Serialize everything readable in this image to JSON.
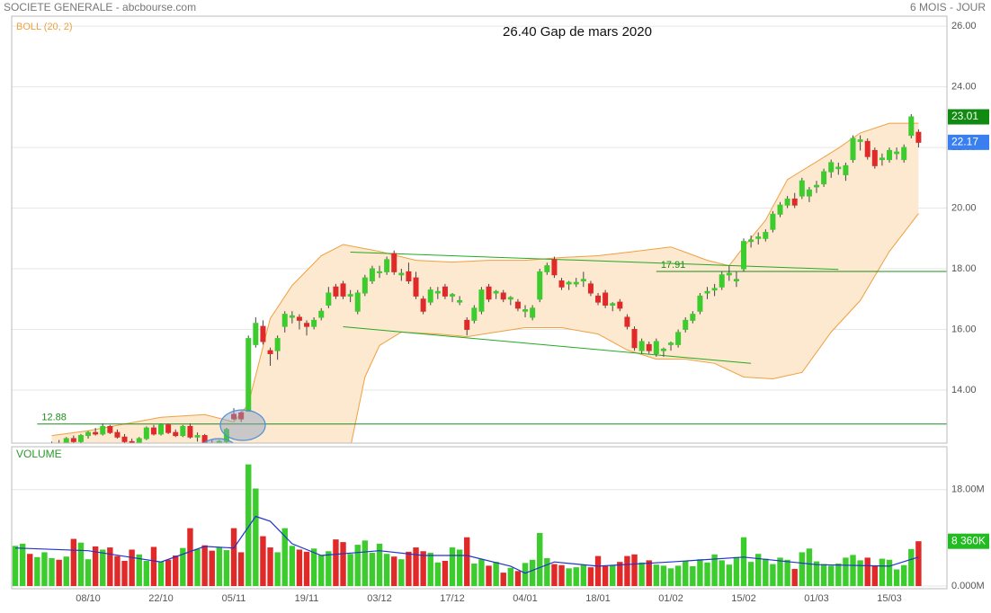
{
  "chart_data": {
    "type": "candlestick",
    "header": "SOCIETE GENERALE - abcbourse.com",
    "period": "6 MOIS - JOUR",
    "title": "26.40 Gap de mars 2020",
    "indicator_label": "BOLL (20, 2)",
    "volume_label": "VOLUME",
    "grid": true,
    "xlim": [
      -0.5,
      127.9
    ],
    "xticks": [
      {
        "value": 10,
        "label": "08/10"
      },
      {
        "value": 20,
        "label": "22/10"
      },
      {
        "value": 30,
        "label": "05/11"
      },
      {
        "value": 40,
        "label": "19/11"
      },
      {
        "value": 50,
        "label": "03/12"
      },
      {
        "value": 60,
        "label": "17/12"
      },
      {
        "value": 70,
        "label": "04/01"
      },
      {
        "value": 80,
        "label": "18/01"
      },
      {
        "value": 90,
        "label": "01/02"
      },
      {
        "value": 100,
        "label": "15/02"
      },
      {
        "value": 110,
        "label": "01/03"
      },
      {
        "value": 120,
        "label": "15/03"
      }
    ],
    "ylim": [
      12.25,
      26.33
    ],
    "yticks": [
      {
        "value": 14,
        "label": "14.00"
      },
      {
        "value": 16,
        "label": "16.00"
      },
      {
        "value": 18,
        "label": "18.00"
      },
      {
        "value": 20,
        "label": "20.00"
      },
      {
        "value": 22,
        "label": "22.00"
      },
      {
        "value": 24,
        "label": "24.00"
      },
      {
        "value": 26,
        "label": "26.00"
      }
    ],
    "up_color": "#3ccc2e",
    "down_color": "#e02a2a",
    "ohlc": [
      [
        12.0,
        12.1,
        11.9,
        12.05
      ],
      [
        12.05,
        12.2,
        11.95,
        12.1
      ],
      [
        12.1,
        12.2,
        11.9,
        11.95
      ],
      [
        11.95,
        12.1,
        11.8,
        12.0
      ],
      [
        12.0,
        12.15,
        11.9,
        12.1
      ],
      [
        12.1,
        12.3,
        12.0,
        12.25
      ],
      [
        12.25,
        12.35,
        12.1,
        12.2
      ],
      [
        12.2,
        12.45,
        12.15,
        12.4
      ],
      [
        12.4,
        12.5,
        12.25,
        12.3
      ],
      [
        12.3,
        12.55,
        12.25,
        12.5
      ],
      [
        12.5,
        12.65,
        12.4,
        12.6
      ],
      [
        12.6,
        12.75,
        12.5,
        12.55
      ],
      [
        12.55,
        12.9,
        12.5,
        12.8
      ],
      [
        12.8,
        12.85,
        12.55,
        12.6
      ],
      [
        12.6,
        12.7,
        12.4,
        12.45
      ],
      [
        12.45,
        12.55,
        12.2,
        12.3
      ],
      [
        12.3,
        12.4,
        12.1,
        12.2
      ],
      [
        12.2,
        12.45,
        12.1,
        12.4
      ],
      [
        12.4,
        12.8,
        12.35,
        12.75
      ],
      [
        12.75,
        12.85,
        12.5,
        12.55
      ],
      [
        12.55,
        12.9,
        12.5,
        12.85
      ],
      [
        12.85,
        12.9,
        12.55,
        12.6
      ],
      [
        12.6,
        12.7,
        12.45,
        12.5
      ],
      [
        12.5,
        12.85,
        12.45,
        12.8
      ],
      [
        12.8,
        12.9,
        12.4,
        12.45
      ],
      [
        12.45,
        12.6,
        12.3,
        12.5
      ],
      [
        12.5,
        12.55,
        12.2,
        12.25
      ],
      [
        12.25,
        12.35,
        12.0,
        12.1
      ],
      [
        12.1,
        12.35,
        12.0,
        12.3
      ],
      [
        12.3,
        12.75,
        12.25,
        12.7
      ],
      [
        13.2,
        13.4,
        13.0,
        13.05
      ],
      [
        13.25,
        13.3,
        12.95,
        13.05
      ],
      [
        13.3,
        15.8,
        13.3,
        15.7
      ],
      [
        15.5,
        16.4,
        15.4,
        16.2
      ],
      [
        16.1,
        16.3,
        15.5,
        15.6
      ],
      [
        15.3,
        15.4,
        14.8,
        15.2
      ],
      [
        15.3,
        15.8,
        15.0,
        15.7
      ],
      [
        16.1,
        16.6,
        15.9,
        16.5
      ],
      [
        16.4,
        16.6,
        16.2,
        16.45
      ],
      [
        16.4,
        16.5,
        16.0,
        16.3
      ],
      [
        16.2,
        16.3,
        15.8,
        16.1
      ],
      [
        16.1,
        16.4,
        16.0,
        16.3
      ],
      [
        16.4,
        16.7,
        16.3,
        16.6
      ],
      [
        16.8,
        17.4,
        16.7,
        17.2
      ],
      [
        17.4,
        17.5,
        17.0,
        17.1
      ],
      [
        17.5,
        17.6,
        17.0,
        17.1
      ],
      [
        17.1,
        17.3,
        16.9,
        17.15
      ],
      [
        16.6,
        17.3,
        16.5,
        17.2
      ],
      [
        17.2,
        17.8,
        17.1,
        17.7
      ],
      [
        17.6,
        18.1,
        17.5,
        18.0
      ],
      [
        17.9,
        18.1,
        17.7,
        17.9
      ],
      [
        17.9,
        18.4,
        17.8,
        18.3
      ],
      [
        18.5,
        18.6,
        17.8,
        17.9
      ],
      [
        17.8,
        18.0,
        17.6,
        17.85
      ],
      [
        17.9,
        18.2,
        17.5,
        17.6
      ],
      [
        17.7,
        17.9,
        17.0,
        17.1
      ],
      [
        17.0,
        17.1,
        16.5,
        16.6
      ],
      [
        16.9,
        17.4,
        16.8,
        17.3
      ],
      [
        17.2,
        17.4,
        17.0,
        17.25
      ],
      [
        17.4,
        17.5,
        17.0,
        17.1
      ],
      [
        17.1,
        17.2,
        16.9,
        17.15
      ],
      [
        16.9,
        17.1,
        16.8,
        16.95
      ],
      [
        16.3,
        16.4,
        15.8,
        16.0
      ],
      [
        16.3,
        16.8,
        16.2,
        16.7
      ],
      [
        16.6,
        17.4,
        16.5,
        17.3
      ],
      [
        17.4,
        17.5,
        16.9,
        17.0
      ],
      [
        17.2,
        17.3,
        17.0,
        17.25
      ],
      [
        17.2,
        17.3,
        16.9,
        17.0
      ],
      [
        17.0,
        17.1,
        16.8,
        17.05
      ],
      [
        16.9,
        17.0,
        16.6,
        16.7
      ],
      [
        16.6,
        16.8,
        16.4,
        16.65
      ],
      [
        16.4,
        16.8,
        16.3,
        16.7
      ],
      [
        17.0,
        18.0,
        16.9,
        17.9
      ],
      [
        17.9,
        18.2,
        17.8,
        18.1
      ],
      [
        18.3,
        18.4,
        17.7,
        17.8
      ],
      [
        17.6,
        17.7,
        17.3,
        17.4
      ],
      [
        17.5,
        17.6,
        17.3,
        17.55
      ],
      [
        17.5,
        17.7,
        17.4,
        17.55
      ],
      [
        17.6,
        17.9,
        17.4,
        17.65
      ],
      [
        17.5,
        17.6,
        17.1,
        17.2
      ],
      [
        17.1,
        17.2,
        16.8,
        16.9
      ],
      [
        17.2,
        17.3,
        16.7,
        16.8
      ],
      [
        16.8,
        16.9,
        16.6,
        16.85
      ],
      [
        16.9,
        17.0,
        16.6,
        16.7
      ],
      [
        16.4,
        16.5,
        16.0,
        16.1
      ],
      [
        16.0,
        16.1,
        15.3,
        15.4
      ],
      [
        15.3,
        15.7,
        15.2,
        15.6
      ],
      [
        15.5,
        15.6,
        15.2,
        15.3
      ],
      [
        15.2,
        15.7,
        15.1,
        15.6
      ],
      [
        15.3,
        15.4,
        15.1,
        15.35
      ],
      [
        15.5,
        15.6,
        15.3,
        15.55
      ],
      [
        15.5,
        16.0,
        15.4,
        15.9
      ],
      [
        16.0,
        16.4,
        15.9,
        16.3
      ],
      [
        16.3,
        16.6,
        16.2,
        16.5
      ],
      [
        16.6,
        17.2,
        16.5,
        17.1
      ],
      [
        17.2,
        17.4,
        17.0,
        17.25
      ],
      [
        17.3,
        17.5,
        17.1,
        17.35
      ],
      [
        17.4,
        17.9,
        17.3,
        17.8
      ],
      [
        17.8,
        18.1,
        17.6,
        17.85
      ],
      [
        17.6,
        17.9,
        17.4,
        17.65
      ],
      [
        18.0,
        19.0,
        17.9,
        18.9
      ],
      [
        18.9,
        19.1,
        18.7,
        18.95
      ],
      [
        19.0,
        19.2,
        18.8,
        19.05
      ],
      [
        19.0,
        19.3,
        18.9,
        19.2
      ],
      [
        19.3,
        19.9,
        19.2,
        19.8
      ],
      [
        19.8,
        20.2,
        19.7,
        20.1
      ],
      [
        20.1,
        20.4,
        20.0,
        20.3
      ],
      [
        20.3,
        20.5,
        20.0,
        20.1
      ],
      [
        20.4,
        21.0,
        20.3,
        20.9
      ],
      [
        20.4,
        20.7,
        20.2,
        20.6
      ],
      [
        20.7,
        20.9,
        20.5,
        20.75
      ],
      [
        20.8,
        21.3,
        20.7,
        21.2
      ],
      [
        21.2,
        21.6,
        21.0,
        21.5
      ],
      [
        21.3,
        21.5,
        21.1,
        21.35
      ],
      [
        21.1,
        21.5,
        20.9,
        21.4
      ],
      [
        21.6,
        22.4,
        21.5,
        22.3
      ],
      [
        22.2,
        22.4,
        21.9,
        22.25
      ],
      [
        22.2,
        22.3,
        21.6,
        21.7
      ],
      [
        21.9,
        22.0,
        21.3,
        21.4
      ],
      [
        21.6,
        21.8,
        21.4,
        21.65
      ],
      [
        21.6,
        22.0,
        21.5,
        21.9
      ],
      [
        21.8,
        22.0,
        21.6,
        21.85
      ],
      [
        21.6,
        22.1,
        21.5,
        22.0
      ],
      [
        22.4,
        23.1,
        22.3,
        23.01
      ],
      [
        22.5,
        22.6,
        22.0,
        22.17
      ]
    ],
    "boll": {
      "color": "#f0a040",
      "fill": "#fde8d0",
      "upper": {
        "x": [
          5,
          10,
          20,
          26,
          30,
          32,
          35,
          38,
          42,
          45,
          50,
          55,
          60,
          65,
          70,
          75,
          80,
          85,
          90,
          95,
          98,
          100,
          103,
          106,
          110,
          113,
          116,
          120,
          124
        ],
        "values": [
          12.5,
          12.66,
          13.1,
          13.19,
          12.95,
          13.54,
          16.36,
          17.45,
          18.43,
          18.8,
          18.57,
          18.28,
          18.22,
          18.28,
          18.28,
          18.37,
          18.43,
          18.57,
          18.72,
          18.28,
          18.1,
          18.72,
          19.6,
          20.94,
          21.53,
          21.98,
          22.48,
          22.8,
          22.8
        ]
      },
      "lower": {
        "x": [
          5,
          30,
          40,
          46,
          48,
          50,
          53,
          58,
          62,
          66,
          70,
          75,
          80,
          84,
          88,
          92,
          96,
          100,
          104,
          108,
          112,
          116,
          120,
          124
        ],
        "values": [
          11.6,
          11.7,
          11.5,
          12.1,
          14.43,
          15.47,
          15.91,
          15.85,
          15.76,
          15.91,
          16.06,
          16.06,
          15.85,
          15.32,
          15.02,
          15.02,
          14.88,
          14.43,
          14.37,
          14.58,
          15.91,
          16.95,
          18.57,
          19.82
        ]
      }
    },
    "level_color": "#1d8c1d",
    "levels": [
      {
        "value": 12.88,
        "from": 3
      },
      {
        "value": 17.91,
        "from": 88
      }
    ],
    "trendlines": [
      {
        "x": [
          46,
          113
        ],
        "y": [
          18.55,
          17.98
        ]
      },
      {
        "x": [
          45,
          101
        ],
        "y": [
          16.09,
          14.88
        ]
      }
    ],
    "price_labels": [
      {
        "value": 23.01,
        "color": "#108a10"
      },
      {
        "value": 22.17,
        "color": "#3a7ff0"
      }
    ],
    "volume": {
      "ylim": [
        0,
        26
      ],
      "yticks": [
        {
          "value": 0,
          "label": "0.000M"
        },
        {
          "value": 18,
          "label": "18.00M"
        }
      ],
      "values": [
        7.5,
        7.9,
        6.0,
        5.4,
        6.3,
        5.2,
        4.9,
        5.5,
        8.8,
        8.1,
        5.0,
        7.4,
        6.8,
        7.2,
        5.6,
        4.7,
        6.8,
        5.9,
        4.7,
        7.3,
        4.6,
        4.9,
        5.7,
        7.1,
        10.8,
        6.9,
        7.6,
        6.6,
        7.3,
        6.7,
        10.8,
        6.3,
        22.7,
        18.2,
        9.3,
        7.2,
        6.3,
        10.8,
        7.5,
        6.8,
        6.4,
        7.0,
        5.8,
        6.5,
        8.7,
        8.2,
        6.0,
        7.7,
        8.5,
        6.2,
        7.9,
        6.0,
        5.5,
        5.0,
        6.4,
        7.2,
        6.5,
        6.2,
        4.4,
        4.7,
        7.2,
        6.8,
        9.1,
        4.2,
        5.0,
        3.8,
        4.5,
        2.5,
        3.4,
        2.8,
        4.3,
        4.9,
        9.9,
        5.2,
        4.1,
        3.9,
        3.3,
        3.5,
        4.0,
        3.5,
        5.6,
        3.7,
        3.9,
        4.5,
        5.6,
        5.9,
        4.4,
        4.8,
        4.0,
        3.8,
        3.3,
        3.8,
        4.7,
        3.7,
        5.0,
        4.4,
        5.9,
        4.8,
        4.0,
        5.4,
        9.1,
        4.5,
        6.0,
        5.1,
        4.1,
        5.3,
        4.9,
        3.2,
        6.3,
        7.0,
        4.6,
        4.1,
        3.8,
        4.2,
        5.3,
        5.8,
        4.8,
        5.3,
        3.7,
        5.1,
        4.9,
        3.1,
        3.9,
        6.9,
        8.36
      ],
      "ma": {
        "color": "#2233cc",
        "x": [
          0,
          10,
          20,
          26,
          30,
          33,
          35,
          38,
          42,
          50,
          56,
          62,
          68,
          70,
          74,
          80,
          90,
          100,
          110,
          120,
          124
        ],
        "values": [
          7.1,
          6.6,
          4.5,
          7.4,
          7.1,
          13.0,
          12.1,
          7.9,
          5.7,
          6.6,
          5.7,
          5.7,
          3.7,
          2.4,
          4.5,
          3.7,
          4.5,
          5.4,
          4.0,
          3.7,
          5.4
        ]
      },
      "last": {
        "value": 8.36,
        "label": "8 360K",
        "color": "#22bb22"
      }
    }
  }
}
